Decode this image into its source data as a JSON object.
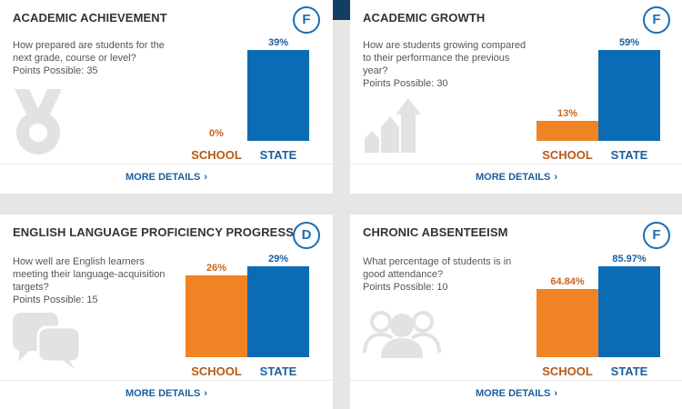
{
  "more_details_label": "MORE DETAILS",
  "colors": {
    "school": "#f08323",
    "state": "#0b6cb5",
    "accent": "#1a6db5"
  },
  "cards": [
    {
      "title": "ACADEMIC ACHIEVEMENT",
      "grade": "F",
      "question": "How prepared are students for the next grade, course or level?",
      "points": "Points Possible: 35",
      "icon": "medal-icon",
      "school": {
        "label": "SCHOOL",
        "value_text": "0%",
        "value": 0
      },
      "state": {
        "label": "STATE",
        "value_text": "39%",
        "value": 39
      }
    },
    {
      "title": "ACADEMIC GROWTH",
      "grade": "F",
      "question": "How are students growing compared to their performance the previous year?",
      "points": "Points Possible: 30",
      "icon": "growth-arrows-icon",
      "school": {
        "label": "SCHOOL",
        "value_text": "13%",
        "value": 13
      },
      "state": {
        "label": "STATE",
        "value_text": "59%",
        "value": 59
      }
    },
    {
      "title": "ENGLISH LANGUAGE PROFICIENCY PROGRESS",
      "grade": "D",
      "question": "How well are English learners meeting their language-acquisition targets?",
      "points": "Points Possible: 15",
      "icon": "speech-bubbles-icon",
      "school": {
        "label": "SCHOOL",
        "value_text": "26%",
        "value": 26
      },
      "state": {
        "label": "STATE",
        "value_text": "29%",
        "value": 29
      }
    },
    {
      "title": "CHRONIC ABSENTEEISM",
      "grade": "F",
      "question": "What percentage of students is in good attendance?",
      "points": "Points Possible: 10",
      "icon": "people-group-icon",
      "school": {
        "label": "SCHOOL",
        "value_text": "64.84%",
        "value": 64.84
      },
      "state": {
        "label": "STATE",
        "value_text": "85.97%",
        "value": 85.97
      }
    }
  ]
}
